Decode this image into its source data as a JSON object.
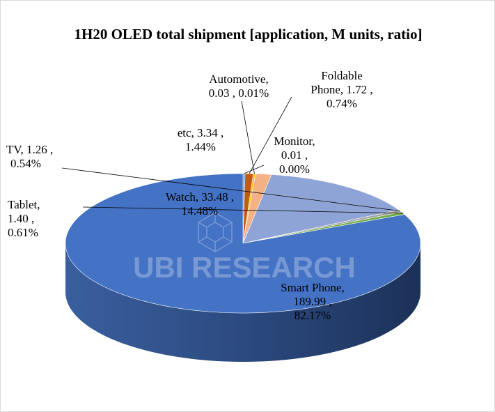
{
  "chart_data": {
    "type": "pie",
    "title": "1H20 OLED total shipment [application, M units, ratio]",
    "style": "3d",
    "slices": [
      {
        "name": "Smart Phone",
        "value": 189.99,
        "ratio": "82.17%",
        "color": "#4472c4",
        "label_lines": [
          "Smart Phone,",
          "189.99 ,",
          "82.17%"
        ]
      },
      {
        "name": "Tablet",
        "value": 1.4,
        "ratio": "0.61%",
        "color": "#70ad47",
        "label_lines": [
          "Tablet,",
          "1.40 ,",
          "0.61%"
        ]
      },
      {
        "name": "TV",
        "value": 1.26,
        "ratio": "0.54%",
        "color": "#a5a5a5",
        "label_lines": [
          "TV,  1.26 ,",
          "0.54%"
        ]
      },
      {
        "name": "Watch",
        "value": 33.48,
        "ratio": "14.48%",
        "color": "#8fa4d6",
        "label_lines": [
          "Watch,  33.48 ,",
          "14.48%"
        ]
      },
      {
        "name": "etc",
        "value": 3.34,
        "ratio": "1.44%",
        "color": "#f4b183",
        "label_lines": [
          "etc,  3.34 ,",
          "1.44%"
        ]
      },
      {
        "name": "Automotive",
        "value": 0.03,
        "ratio": "0.01%",
        "color": "#ffc000",
        "label_lines": [
          "Automotive,",
          "0.03 , 0.01%"
        ]
      },
      {
        "name": "Foldable Phone",
        "value": 1.72,
        "ratio": "0.74%",
        "color": "#c55a11",
        "label_lines": [
          "Foldable",
          "Phone,  1.72 ,",
          "0.74%"
        ]
      },
      {
        "name": "Monitor",
        "value": 0.01,
        "ratio": "0.00%",
        "color": "#5b9bd5",
        "label_lines": [
          "Monitor,",
          "0.01 ,",
          "0.00%"
        ]
      }
    ]
  },
  "watermark": {
    "text": "UBI RESEARCH"
  }
}
